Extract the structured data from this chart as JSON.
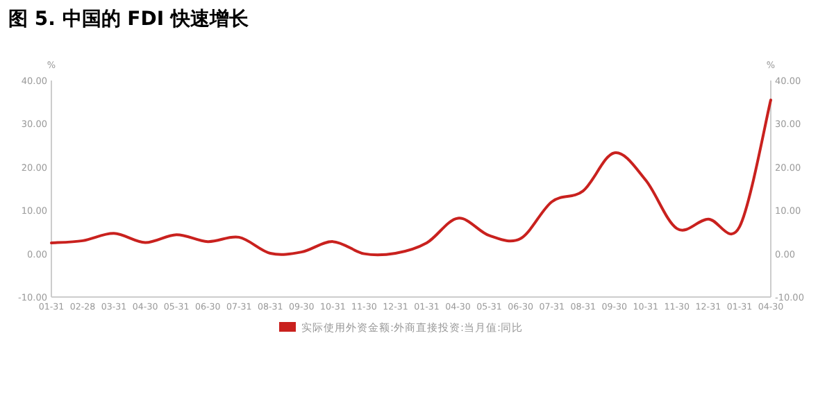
{
  "chart_data": {
    "type": "line",
    "title": "图 5. 中国的 FDI 快速增长",
    "ylabel": "%",
    "y2label": "%",
    "categories": [
      "01-31",
      "02-28",
      "03-31",
      "04-30",
      "05-31",
      "06-30",
      "07-31",
      "08-31",
      "09-30",
      "10-31",
      "11-30",
      "12-31",
      "01-31",
      "04-30",
      "05-31",
      "06-30",
      "07-31",
      "08-31",
      "09-30",
      "10-31",
      "11-30",
      "12-31",
      "01-31",
      "04-30"
    ],
    "series": [
      {
        "name": "实际使用外资金额:外商直接投资:当月值:同比",
        "color": "#c9211e",
        "values": [
          2.5,
          3.0,
          4.7,
          2.6,
          4.4,
          2.8,
          3.8,
          0.1,
          0.4,
          2.8,
          0.0,
          0.1,
          2.5,
          8.2,
          4.2,
          3.5,
          12.0,
          14.5,
          23.3,
          17.0,
          5.8,
          8.0,
          6.2,
          35.5
        ]
      }
    ],
    "ylim": [
      -10,
      40
    ],
    "yticks": [
      {
        "value": -10,
        "label": "-10.00"
      },
      {
        "value": 0,
        "label": "0.00"
      },
      {
        "value": 10,
        "label": "10.00"
      },
      {
        "value": 20,
        "label": "20.00"
      },
      {
        "value": 30,
        "label": "30.00"
      },
      {
        "value": 40,
        "label": "40.00"
      }
    ],
    "y2lim": [
      -10,
      40
    ],
    "y2ticks": [
      {
        "value": -10,
        "label": "-10.00"
      },
      {
        "value": 0,
        "label": "0.00"
      },
      {
        "value": 10,
        "label": "10.00"
      },
      {
        "value": 20,
        "label": "20.00"
      },
      {
        "value": 30,
        "label": "30.00"
      },
      {
        "value": 40,
        "label": "40.00"
      }
    ],
    "legend": "bottom",
    "grid": false,
    "marker": "none",
    "line_style": "solid"
  }
}
